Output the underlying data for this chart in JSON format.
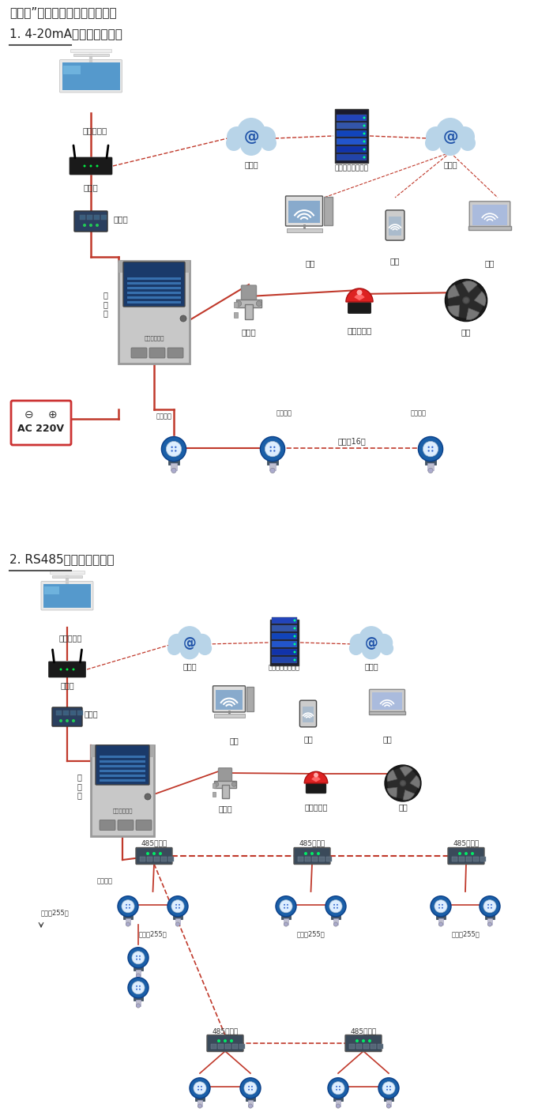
{
  "title1": "机气猫”系列带显示固定式检测仪",
  "section1": "1. 4-20mA信号连接系统图",
  "section2": "2. RS485信号连接系统图",
  "bg_color": "#f5f5f5",
  "rc": "#c0392b",
  "labels": {
    "computer": "单机版电脑",
    "router": "路由器",
    "internet": "互联网",
    "server": "安帕尔网络服务器",
    "converter": "转换器",
    "tongxun": "通\n讯\n线",
    "pc": "电脑",
    "phone": "手机",
    "terminal": "终端",
    "solenoid": "电磁阀",
    "alarm": "声光报警器",
    "fan": "风机",
    "ac220": "AC 220V",
    "signal_out": "信号输出",
    "can16": "可连接16个",
    "hub485": "485中继器",
    "can255": "可连接255台",
    "signal_input": "信号输出"
  },
  "font_cn": "WenQuanYi Micro Hei",
  "font_fallback": "DejaVu Sans"
}
